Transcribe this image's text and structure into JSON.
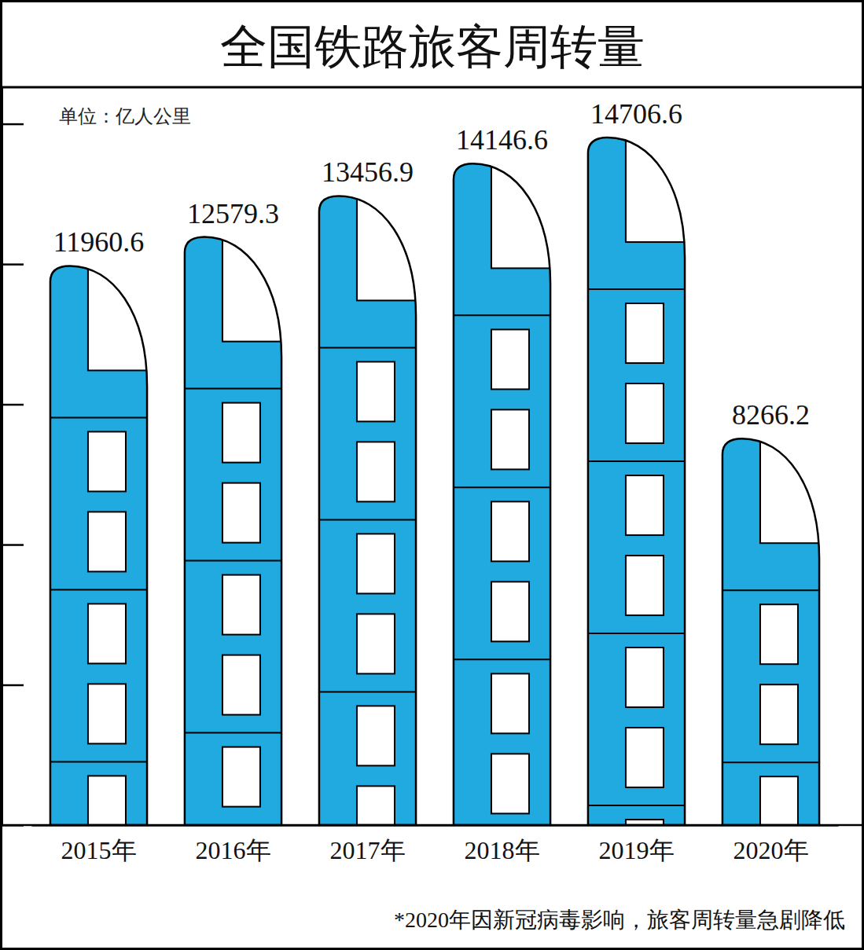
{
  "chart_data": {
    "type": "bar",
    "title": "全国铁路旅客周转量",
    "y_label": "单位：亿人公里",
    "annotations": [
      "*2020年因新冠病毒影响，旅客周转量急剧降低"
    ],
    "categories": [
      "2015年",
      "2016年",
      "2017年",
      "2018年",
      "2019年",
      "2020年"
    ],
    "values": [
      11960.6,
      12579.3,
      13456.9,
      14146.6,
      14706.6,
      8266.2
    ],
    "color": "#20aadf",
    "ylim": [
      0,
      15800
    ],
    "yticks": [
      0,
      3000,
      6000,
      9000,
      12000,
      15000
    ],
    "grid": false,
    "data_labels": true,
    "tick_labels": "x"
  }
}
